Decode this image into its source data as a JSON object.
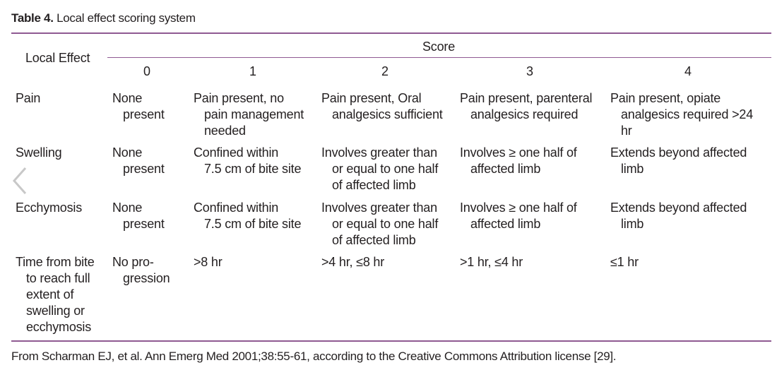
{
  "caption": {
    "label": "Table 4.",
    "title": "Local effect scoring system"
  },
  "table": {
    "header": {
      "local_effect": "Local Effect",
      "score": "Score",
      "scores": [
        "0",
        "1",
        "2",
        "3",
        "4"
      ]
    },
    "rows": [
      {
        "effect": [
          "Pain"
        ],
        "cells": [
          [
            "None",
            "present"
          ],
          [
            "Pain present, no",
            "pain management",
            "needed"
          ],
          [
            "Pain present, Oral",
            "analgesics sufficient"
          ],
          [
            "Pain present, parenteral",
            "analgesics required"
          ],
          [
            "Pain present, opiate",
            "analgesics required >24",
            "hr"
          ]
        ]
      },
      {
        "effect": [
          "Swelling"
        ],
        "cells": [
          [
            "None",
            "present"
          ],
          [
            "Confined within",
            "7.5 cm of bite site"
          ],
          [
            "Involves greater than",
            "or equal to one half",
            "of affected limb"
          ],
          [
            "Involves ≥ one half of",
            "affected limb"
          ],
          [
            "Extends beyond affected",
            "limb"
          ]
        ]
      },
      {
        "effect": [
          "Ecchymosis"
        ],
        "cells": [
          [
            "None",
            "present"
          ],
          [
            "Confined within",
            "7.5 cm of bite site"
          ],
          [
            "Involves greater than",
            "or equal to one half",
            "of affected limb"
          ],
          [
            "Involves ≥ one half of",
            "affected limb"
          ],
          [
            "Extends beyond affected",
            "limb"
          ]
        ]
      },
      {
        "effect": [
          "Time from bite",
          "to reach full",
          "extent of",
          "swelling or",
          "ecchymosis"
        ],
        "cells": [
          [
            "No pro-",
            "gression"
          ],
          [
            ">8 hr"
          ],
          [
            ">4 hr, ≤8 hr"
          ],
          [
            ">1 hr, ≤4 hr"
          ],
          [
            "≤1 hr"
          ]
        ]
      }
    ]
  },
  "footer": "From Scharman EJ, et al. Ann Emerg Med 2001;38:55-61, according to the Creative Commons Attribution license [29].",
  "nav": {
    "icon": "chevron-left-icon"
  },
  "colors": {
    "rule": "#8f5a92",
    "text": "#231f20",
    "arrow": "#c8c8c8"
  }
}
